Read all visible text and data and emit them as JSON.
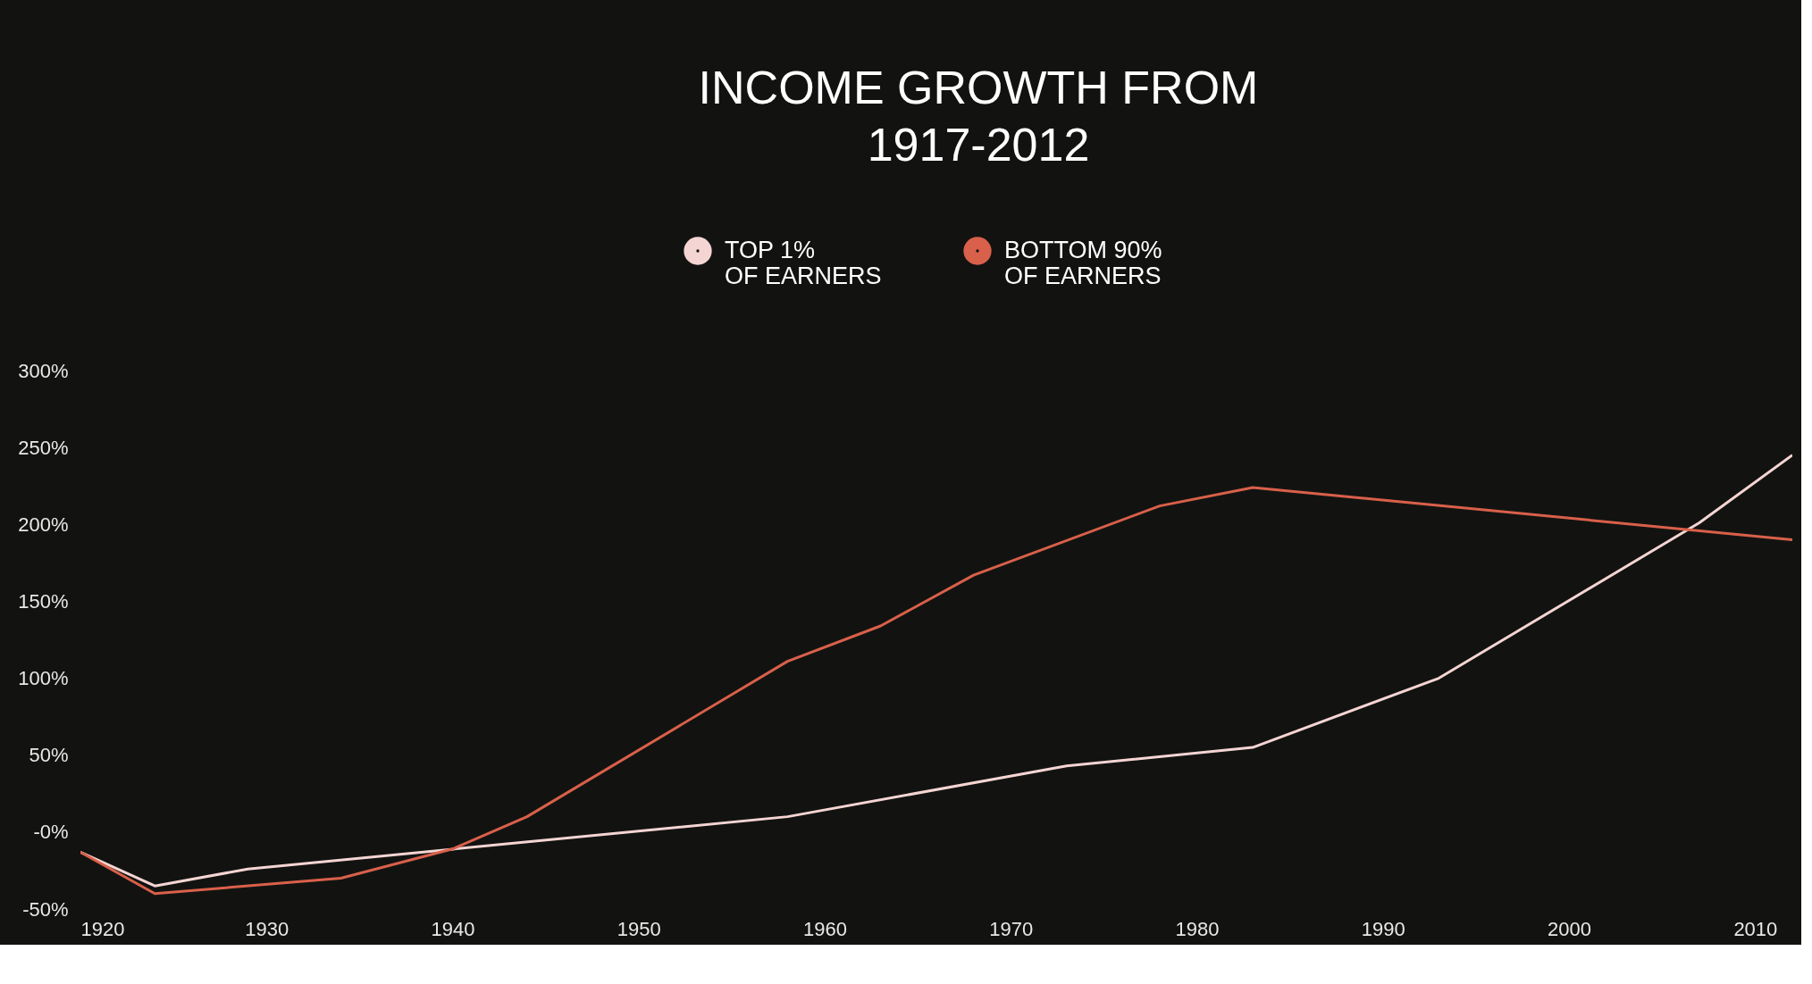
{
  "chart_data": {
    "type": "line",
    "title": "INCOME GROWTH FROM\n1917-2012",
    "series": [
      {
        "name": "TOP 1%\nOF EARNERS",
        "color": "#f5d5d3",
        "x": [
          1920,
          1924,
          1929,
          1958,
          1973,
          1983,
          1993,
          2007,
          2012
        ],
        "values": [
          -13,
          -35,
          -24,
          10,
          43,
          55,
          100,
          201,
          245
        ]
      },
      {
        "name": "BOTTOM 90%\nOF EARNERS",
        "color": "#d9604a",
        "x": [
          1920,
          1924,
          1934,
          1940,
          1944,
          1958,
          1963,
          1968,
          1978,
          1983,
          2012
        ],
        "values": [
          -13,
          -40,
          -30,
          -11,
          10,
          111,
          134,
          167,
          212,
          224,
          190
        ]
      }
    ],
    "xlim": [
      1920,
      2012
    ],
    "xticks": [
      1920,
      1930,
      1940,
      1950,
      1960,
      1970,
      1980,
      1990,
      2000,
      2010
    ],
    "ylim": [
      -50,
      300
    ],
    "yticks": [
      {
        "value": -50,
        "label": "-50%"
      },
      {
        "value": 0,
        "label": "-0%"
      },
      {
        "value": 50,
        "label": "50%"
      },
      {
        "value": 100,
        "label": "100%"
      },
      {
        "value": 150,
        "label": "150%"
      },
      {
        "value": 200,
        "label": "200%"
      },
      {
        "value": 250,
        "label": "250%"
      },
      {
        "value": 300,
        "label": "300%"
      }
    ],
    "grid": false,
    "legend": "top",
    "marker": "none",
    "line_style": "solid"
  }
}
